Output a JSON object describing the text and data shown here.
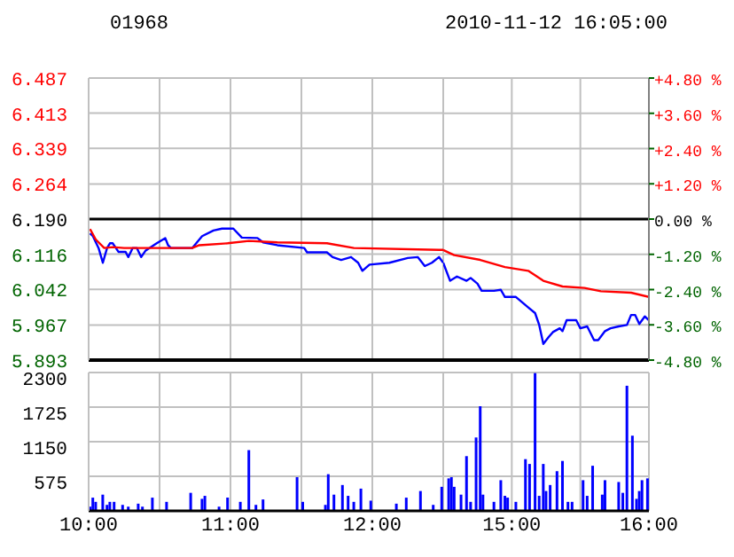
{
  "chart_data": [
    {
      "type": "line",
      "title": "01968",
      "xlim": [
        10,
        12.5
      ],
      "xticks": [
        {
          "value": 10,
          "label": null
        },
        {
          "value": 10.5,
          "label": null
        },
        {
          "value": 11,
          "label": null
        },
        {
          "value": 11.5,
          "label": null
        },
        {
          "value": 12,
          "label": null
        },
        {
          "value": 12.5,
          "label": null
        }
      ],
      "ylim": [
        5.893,
        6.487
      ],
      "yticks": [
        5.893,
        5.967,
        6.042,
        6.116,
        {
          "value": 6.19,
          "label": "6.190"
        },
        6.264,
        6.339,
        6.413,
        6.487
      ],
      "tick_labels": "y",
      "grid": true,
      "marker": "none",
      "line_style": "solid",
      "ref_lines": [
        {
          "axis": "y",
          "value": 6.19,
          "color": "#000000"
        }
      ],
      "series": [
        {
          "color": "#0000ff",
          "x": [
            10.01,
            10.03,
            10.07,
            10.1,
            10.13,
            10.15,
            10.17,
            10.21,
            10.26,
            10.28,
            10.31,
            10.34,
            10.37,
            10.4,
            10.44,
            10.48,
            10.54,
            10.56,
            10.58,
            10.73,
            10.8,
            10.88,
            10.94,
            11.02,
            11.08,
            11.19,
            11.23,
            11.33,
            11.52,
            11.54,
            11.68,
            11.72,
            11.78,
            11.85,
            11.9,
            11.93,
            11.98,
            12.12,
            12.25,
            12.32,
            12.37,
            12.42,
            12.47,
            12.5
          ],
          "values": [
            6.16,
            6.154,
            6.129,
            6.098,
            6.129,
            6.139,
            6.139,
            6.121,
            6.121,
            6.11,
            6.129,
            6.129,
            6.11,
            6.123,
            6.131,
            6.139,
            6.15,
            6.135,
            6.129,
            6.129,
            6.154,
            6.166,
            6.17,
            6.17,
            6.151,
            6.15,
            6.141,
            6.135,
            6.129,
            6.12,
            6.12,
            6.11,
            6.104,
            6.11,
            6.098,
            6.081,
            6.094,
            6.098,
            6.108,
            6.11,
            6.091,
            6.098,
            6.11,
            6.098
          ]
        },
        {
          "color": "#ff0000",
          "x": [
            10.01,
            10.05,
            10.11,
            10.17,
            10.25,
            10.73,
            10.78,
            10.98,
            11.13,
            11.33,
            11.68,
            11.87,
            12.47,
            12.5
          ],
          "values": [
            6.169,
            6.147,
            6.129,
            6.131,
            6.129,
            6.129,
            6.135,
            6.139,
            6.144,
            6.141,
            6.139,
            6.129,
            6.125,
            6.125
          ]
        }
      ]
    },
    {
      "type": "line",
      "title": "2010-11-12 16:05:00",
      "xlim": [
        14.5,
        16
      ],
      "xticks": [
        {
          "value": 14.5,
          "label": null
        },
        {
          "value": 15,
          "label": null
        },
        {
          "value": 15.5,
          "label": null
        },
        {
          "value": 16,
          "label": null
        }
      ],
      "ylim": [
        5.893,
        6.487
      ],
      "y2lim": [
        -4.8,
        4.8
      ],
      "y2ticks": [
        {
          "value": -4.8,
          "label": "-4.80 %"
        },
        {
          "value": -3.6,
          "label": "-3.60 %"
        },
        {
          "value": -2.4,
          "label": "-2.40 %"
        },
        {
          "value": -1.2,
          "label": "-1.20 %"
        },
        {
          "value": 0,
          "label": "0.00 %"
        },
        {
          "value": 1.2,
          "label": "+1.20 %"
        },
        {
          "value": 2.4,
          "label": "+2.40 %"
        },
        {
          "value": 3.6,
          "label": "+3.60 %"
        },
        {
          "value": 4.8,
          "label": "+4.80 %"
        }
      ],
      "tick_labels": "y",
      "grid": true,
      "marker": "none",
      "line_style": "solid",
      "ref_lines": [
        {
          "axis": "y2",
          "value": 0,
          "color": "#000000"
        }
      ],
      "series": [
        {
          "color": "#0000ff",
          "x": [
            14.5,
            14.55,
            14.6,
            14.67,
            14.7,
            14.75,
            14.78,
            14.87,
            14.92,
            14.95,
            15.03,
            15.12,
            15.17,
            15.2,
            15.23,
            15.27,
            15.3,
            15.35,
            15.37,
            15.4,
            15.47,
            15.5,
            15.55,
            15.6,
            15.63,
            15.68,
            15.72,
            15.78,
            15.84,
            15.87,
            15.9,
            15.93,
            15.97,
            16
          ],
          "values": [
            6.098,
            6.06,
            6.069,
            6.06,
            6.066,
            6.054,
            6.039,
            6.039,
            6.041,
            6.026,
            6.026,
            6.004,
            5.992,
            5.967,
            5.927,
            5.942,
            5.952,
            5.96,
            5.954,
            5.977,
            5.977,
            5.96,
            5.964,
            5.935,
            5.935,
            5.954,
            5.96,
            5.964,
            5.967,
            5.988,
            5.988,
            5.969,
            5.985,
            5.977
          ]
        },
        {
          "color": "#ff0000",
          "x": [
            14.5,
            14.58,
            14.77,
            14.95,
            15.12,
            15.23,
            15.37,
            15.53,
            15.65,
            15.87,
            16
          ],
          "values": [
            6.125,
            6.114,
            6.104,
            6.089,
            6.081,
            6.06,
            6.048,
            6.045,
            6.038,
            6.035,
            6.026
          ]
        }
      ]
    },
    {
      "type": "bar",
      "xlim": [
        10,
        12.5
      ],
      "xticks": [
        {
          "value": 10,
          "label": "10:00"
        },
        {
          "value": 10.5,
          "label": null
        },
        {
          "value": 11,
          "label": "11:00"
        },
        {
          "value": 11.5,
          "label": null
        },
        {
          "value": 12,
          "label": "12:00"
        },
        {
          "value": 12.5,
          "label": null
        }
      ],
      "ylim": [
        0,
        2300
      ],
      "yticks": [
        {
          "value": 0,
          "label": null
        },
        575,
        1150,
        1725,
        2300
      ],
      "grid": true,
      "series": [
        {
          "color": "#0000ff",
          "x": [
            10.01,
            10.03,
            10.05,
            10.1,
            10.13,
            10.15,
            10.18,
            10.24,
            10.28,
            10.35,
            10.38,
            10.45,
            10.55,
            10.72,
            10.8,
            10.82,
            10.92,
            10.98,
            11.07,
            11.13,
            11.18,
            11.23,
            11.47,
            11.51,
            11.67,
            11.69,
            11.73,
            11.79,
            11.83,
            11.87,
            11.92,
            11.99,
            12.17,
            12.24,
            12.34,
            12.43,
            12.49
          ],
          "values": [
            70,
            220,
            150,
            270,
            100,
            150,
            150,
            100,
            70,
            120,
            70,
            220,
            150,
            300,
            200,
            250,
            70,
            220,
            150,
            1010,
            100,
            190,
            560,
            150,
            100,
            610,
            270,
            430,
            250,
            150,
            370,
            170,
            120,
            220,
            330,
            100,
            400
          ]
        }
      ]
    },
    {
      "type": "bar",
      "xlim": [
        14.5,
        16
      ],
      "xticks": [
        {
          "value": 14.5,
          "label": null
        },
        {
          "value": 15,
          "label": "15:00"
        },
        {
          "value": 15.5,
          "label": null
        },
        {
          "value": 16,
          "label": "16:00"
        }
      ],
      "ylim": [
        0,
        2300
      ],
      "yticks": [
        0,
        575,
        1150,
        1725,
        2300
      ],
      "tick_labels": "x",
      "grid": true,
      "series": [
        {
          "color": "#0000ff",
          "x": [
            14.54,
            14.56,
            14.58,
            14.63,
            14.67,
            14.7,
            14.74,
            14.77,
            14.79,
            14.87,
            14.92,
            14.95,
            14.97,
            15.03,
            15.1,
            15.13,
            15.17,
            15.2,
            15.23,
            15.25,
            15.28,
            15.33,
            15.37,
            15.41,
            15.44,
            15.52,
            15.55,
            15.59,
            15.66,
            15.68,
            15.78,
            15.81,
            15.84,
            15.88,
            15.91,
            15.93,
            15.95,
            15.99
          ],
          "values": [
            540,
            560,
            400,
            270,
            910,
            150,
            1220,
            1740,
            270,
            150,
            510,
            250,
            220,
            150,
            860,
            780,
            2290,
            250,
            780,
            330,
            430,
            660,
            830,
            150,
            150,
            510,
            250,
            750,
            270,
            510,
            480,
            300,
            2080,
            1250,
            200,
            330,
            510,
            540
          ]
        }
      ]
    }
  ]
}
